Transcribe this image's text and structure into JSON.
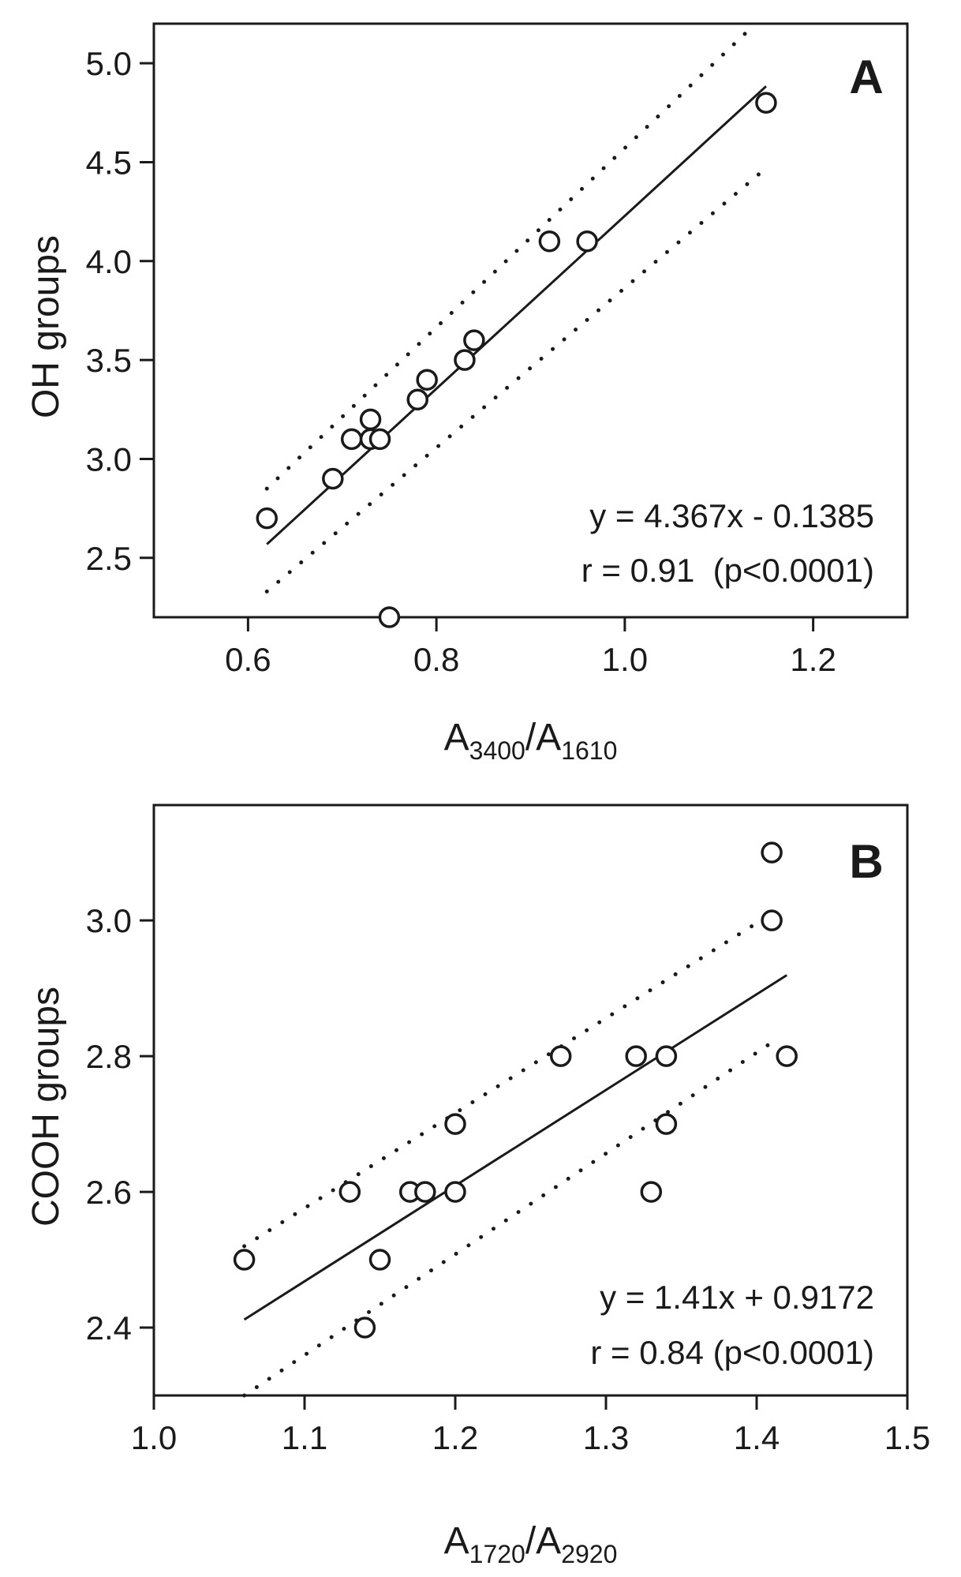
{
  "chart_data": [
    {
      "type": "scatter",
      "panel_label": "A",
      "xlim": [
        0.5,
        1.3
      ],
      "ylim": [
        2.2,
        5.2
      ],
      "xticks": [
        0.6,
        0.8,
        1.0,
        1.2
      ],
      "xtick_labels": [
        "0.6",
        "0.8",
        "1.0",
        "1.2"
      ],
      "yticks": [
        2.5,
        3.0,
        3.5,
        4.0,
        4.5,
        5.0
      ],
      "ytick_labels": [
        "2.5",
        "3.0",
        "3.5",
        "4.0",
        "4.5",
        "5.0"
      ],
      "xlabel": {
        "main1": "A",
        "sub1": "3400",
        "slash": "/",
        "main2": "A",
        "sub2": "1610"
      },
      "ylabel": "OH groups",
      "grid": false,
      "points": [
        {
          "x": 0.62,
          "y": 2.7
        },
        {
          "x": 0.69,
          "y": 2.9
        },
        {
          "x": 0.71,
          "y": 3.1
        },
        {
          "x": 0.73,
          "y": 3.2
        },
        {
          "x": 0.73,
          "y": 3.1
        },
        {
          "x": 0.74,
          "y": 3.1
        },
        {
          "x": 0.75,
          "y": 2.2
        },
        {
          "x": 0.78,
          "y": 3.3
        },
        {
          "x": 0.79,
          "y": 3.4
        },
        {
          "x": 0.83,
          "y": 3.5
        },
        {
          "x": 0.84,
          "y": 3.6
        },
        {
          "x": 0.92,
          "y": 4.1
        },
        {
          "x": 0.96,
          "y": 4.1
        },
        {
          "x": 1.15,
          "y": 4.8
        }
      ],
      "fit_line": {
        "slope": 4.367,
        "intercept": -0.1385,
        "x_range": [
          0.62,
          1.15
        ]
      },
      "confidence_band": {
        "upper": [
          [
            0.62,
            2.85
          ],
          [
            1.13,
            5.16
          ]
        ],
        "lower": [
          [
            0.62,
            2.33
          ],
          [
            1.15,
            4.47
          ]
        ]
      },
      "annotations": [
        "y = 4.367x - 0.1385",
        "r = 0.91  (p<0.0001)"
      ]
    },
    {
      "type": "scatter",
      "panel_label": "B",
      "xlim": [
        1.0,
        1.5
      ],
      "ylim": [
        2.3,
        3.17
      ],
      "xticks": [
        1.0,
        1.1,
        1.2,
        1.3,
        1.4,
        1.5
      ],
      "xtick_labels": [
        "1.0",
        "1.1",
        "1.2",
        "1.3",
        "1.4",
        "1.5"
      ],
      "yticks": [
        2.4,
        2.6,
        2.8,
        3.0
      ],
      "ytick_labels": [
        "2.4",
        "2.6",
        "2.8",
        "3.0"
      ],
      "xlabel": {
        "main1": "A",
        "sub1": "1720",
        "slash": "/",
        "main2": "A",
        "sub2": "2920"
      },
      "ylabel": "COOH groups",
      "grid": false,
      "points": [
        {
          "x": 1.06,
          "y": 2.5
        },
        {
          "x": 1.13,
          "y": 2.6
        },
        {
          "x": 1.14,
          "y": 2.4
        },
        {
          "x": 1.15,
          "y": 2.5
        },
        {
          "x": 1.17,
          "y": 2.6
        },
        {
          "x": 1.18,
          "y": 2.6
        },
        {
          "x": 1.2,
          "y": 2.7
        },
        {
          "x": 1.2,
          "y": 2.6
        },
        {
          "x": 1.27,
          "y": 2.8
        },
        {
          "x": 1.32,
          "y": 2.8
        },
        {
          "x": 1.33,
          "y": 2.6
        },
        {
          "x": 1.34,
          "y": 2.8
        },
        {
          "x": 1.34,
          "y": 2.7
        },
        {
          "x": 1.41,
          "y": 3.1
        },
        {
          "x": 1.41,
          "y": 3.0
        },
        {
          "x": 1.42,
          "y": 2.8
        }
      ],
      "fit_line": {
        "slope": 1.41,
        "intercept": 0.9172,
        "x_range": [
          1.06,
          1.42
        ]
      },
      "confidence_band": {
        "upper": [
          [
            1.06,
            2.52
          ],
          [
            1.41,
            3.01
          ]
        ],
        "lower": [
          [
            1.06,
            2.3
          ],
          [
            1.41,
            2.82
          ]
        ]
      },
      "annotations": [
        "y = 1.41x + 0.9172",
        "r = 0.84 (p<0.0001)"
      ]
    }
  ]
}
